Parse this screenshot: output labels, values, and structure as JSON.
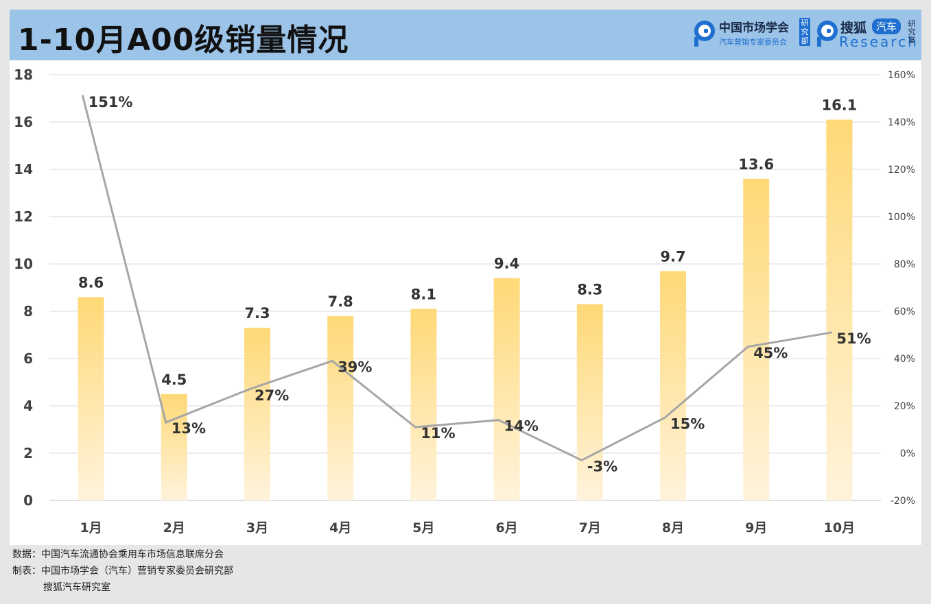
{
  "header": {
    "title": "1-10月A00级销量情况",
    "logo1_main": "中国市场学会",
    "logo1_sub": "汽车营销专家委员会",
    "logo1_vert": "研究部",
    "logo2_main": "搜狐",
    "logo2_pill": "汽车",
    "logo2_research": "Research",
    "logo2_vert": "研究室"
  },
  "footer": {
    "line1": "数据：中国汽车流通协会乘用车市场信息联席分会",
    "line2": "制表：中国市场学会（汽车）营销专家委员会研究部",
    "line3": "搜狐汽车研究室"
  },
  "colors": {
    "header_bg": "#9cc3e8",
    "bar_top": "#ffd977",
    "bar_bottom": "#fff3dc",
    "line": "#a6a6a6",
    "brand": "#1e6fd0"
  },
  "chart_data": {
    "type": "bar",
    "title": "1-10月A00级销量情况",
    "categories": [
      "1月",
      "2月",
      "3月",
      "4月",
      "5月",
      "6月",
      "7月",
      "8月",
      "9月",
      "10月"
    ],
    "series": [
      {
        "type": "bar",
        "axis": "left",
        "values": [
          8.6,
          4.5,
          7.3,
          7.8,
          8.1,
          9.4,
          8.3,
          9.7,
          13.6,
          16.1
        ],
        "labels": [
          "8.6",
          "4.5",
          "7.3",
          "7.8",
          "8.1",
          "9.4",
          "8.3",
          "9.7",
          "13.6",
          "16.1"
        ]
      },
      {
        "type": "line",
        "axis": "right",
        "values": [
          151,
          13,
          27,
          39,
          11,
          14,
          -3,
          15,
          45,
          51
        ],
        "labels": [
          "151%",
          "13%",
          "27%",
          "39%",
          "11%",
          "14%",
          "-3%",
          "15%",
          "45%",
          "51%"
        ]
      }
    ],
    "y_left": {
      "min": 0,
      "max": 18,
      "ticks": [
        "0",
        "2",
        "4",
        "6",
        "8",
        "10",
        "12",
        "14",
        "16",
        "18"
      ]
    },
    "y_right": {
      "min": -20,
      "max": 160,
      "ticks": [
        "-20%",
        "0%",
        "20%",
        "40%",
        "60%",
        "80%",
        "100%",
        "120%",
        "140%",
        "160%"
      ]
    },
    "grid": true,
    "legend": "none"
  }
}
